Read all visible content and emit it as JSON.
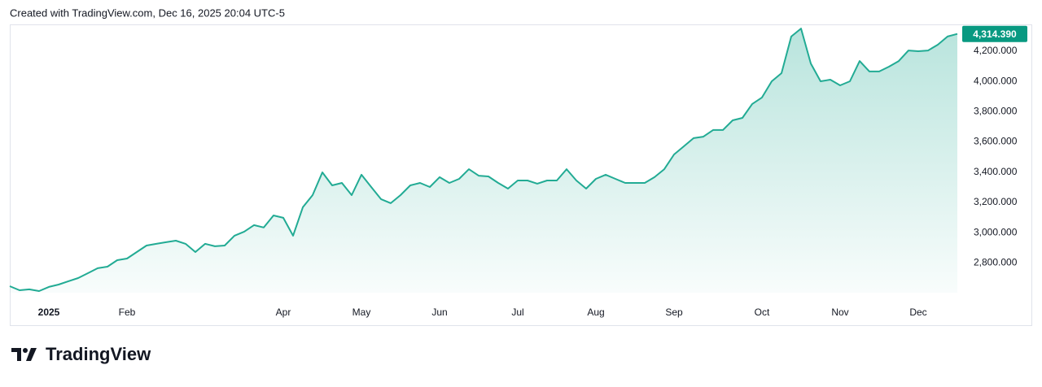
{
  "header": "Created with TradingView.com, Dec 16, 2025 20:04 UTC-5",
  "branding": "TradingView",
  "chart_data": {
    "type": "area",
    "color": "#22ab94",
    "grid": false,
    "ylim": [
      2603,
      4372
    ],
    "yticks": [
      {
        "value": 2800,
        "label": "2,800.000"
      },
      {
        "value": 3000,
        "label": "3,000.000"
      },
      {
        "value": 3200,
        "label": "3,200.000"
      },
      {
        "value": 3400,
        "label": "3,400.000"
      },
      {
        "value": 3600,
        "label": "3,600.000"
      },
      {
        "value": 3800,
        "label": "3,800.000"
      },
      {
        "value": 4000,
        "label": "4,000.000"
      },
      {
        "value": 4200,
        "label": "4,200.000"
      }
    ],
    "last_label": "4,314.390",
    "categories": [
      null,
      null,
      null,
      null,
      "2025",
      null,
      null,
      null,
      null,
      null,
      null,
      null,
      "Feb",
      null,
      null,
      null,
      null,
      null,
      null,
      null,
      null,
      null,
      null,
      null,
      null,
      null,
      null,
      null,
      "Apr",
      null,
      null,
      null,
      null,
      null,
      null,
      null,
      "May",
      null,
      null,
      null,
      null,
      null,
      null,
      null,
      "Jun",
      null,
      null,
      null,
      null,
      null,
      null,
      null,
      "Jul",
      null,
      null,
      null,
      null,
      null,
      null,
      null,
      "Aug",
      null,
      null,
      null,
      null,
      null,
      null,
      null,
      "Sep",
      null,
      null,
      null,
      null,
      null,
      null,
      null,
      null,
      "Oct",
      null,
      null,
      null,
      null,
      null,
      null,
      null,
      "Nov",
      null,
      null,
      null,
      null,
      null,
      null,
      null,
      "Dec",
      null,
      null,
      null,
      null
    ],
    "values": [
      2646,
      2619,
      2625,
      2614,
      2641,
      2657,
      2679,
      2700,
      2732,
      2765,
      2775,
      2818,
      2829,
      2872,
      2915,
      2926,
      2937,
      2947,
      2926,
      2872,
      2926,
      2910,
      2915,
      2980,
      3007,
      3050,
      3034,
      3114,
      3098,
      2980,
      3168,
      3248,
      3399,
      3313,
      3329,
      3248,
      3383,
      3302,
      3222,
      3195,
      3248,
      3313,
      3329,
      3302,
      3367,
      3329,
      3356,
      3420,
      3377,
      3372,
      3329,
      3291,
      3345,
      3345,
      3324,
      3345,
      3345,
      3420,
      3345,
      3291,
      3356,
      3383,
      3356,
      3329,
      3329,
      3329,
      3367,
      3420,
      3517,
      3571,
      3625,
      3635,
      3679,
      3679,
      3743,
      3759,
      3851,
      3894,
      4001,
      4055,
      4297,
      4350,
      4119,
      4001,
      4012,
      3974,
      4001,
      4135,
      4066,
      4066,
      4098,
      4135,
      4205,
      4200,
      4205,
      4243,
      4297,
      4314.39
    ]
  }
}
